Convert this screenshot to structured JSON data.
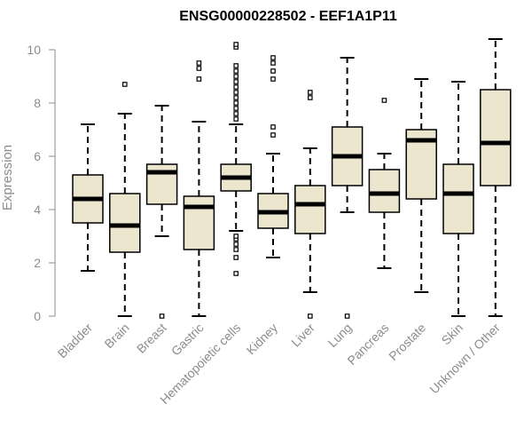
{
  "chart_data": {
    "type": "boxplot",
    "title": "ENSG00000228502 - EEF1A1P11",
    "xlabel": "",
    "ylabel": "Expression",
    "ylim": [
      0,
      10
    ],
    "yticks": [
      0,
      2,
      4,
      6,
      8,
      10
    ],
    "grid": false,
    "legend": "none",
    "colors": {
      "box_fill": "#ede6cf",
      "stroke": "#000000",
      "axis": "#8c8c8c"
    },
    "categories": [
      "Bladder",
      "Brain",
      "Breast",
      "Gastric",
      "Hematopoietic cells",
      "Kidney",
      "Liver",
      "Lung",
      "Pancreas",
      "Prostate",
      "Skin",
      "Unknown / Other"
    ],
    "boxes": [
      {
        "category": "Bladder",
        "whisker_low": 1.7,
        "q1": 3.5,
        "median": 4.4,
        "q3": 5.3,
        "whisker_high": 7.2,
        "outliers": []
      },
      {
        "category": "Brain",
        "whisker_low": 0.0,
        "q1": 2.4,
        "median": 3.4,
        "q3": 4.6,
        "whisker_high": 7.6,
        "outliers": [
          8.7
        ]
      },
      {
        "category": "Breast",
        "whisker_low": 3.0,
        "q1": 4.2,
        "median": 5.4,
        "q3": 5.7,
        "whisker_high": 7.9,
        "outliers": [
          0.0
        ]
      },
      {
        "category": "Gastric",
        "whisker_low": 0.0,
        "q1": 2.5,
        "median": 4.1,
        "q3": 4.5,
        "whisker_high": 7.3,
        "outliers": [
          8.9,
          9.3,
          9.5
        ]
      },
      {
        "category": "Hematopoietic cells",
        "whisker_low": 3.2,
        "q1": 4.7,
        "median": 5.2,
        "q3": 5.7,
        "whisker_high": 7.2,
        "outliers": [
          1.6,
          2.2,
          2.5,
          2.7,
          2.9,
          3.0,
          7.4,
          7.6,
          7.8,
          8.0,
          8.2,
          8.4,
          8.6,
          8.8,
          9.0,
          9.2,
          9.4,
          10.1,
          10.2
        ]
      },
      {
        "category": "Kidney",
        "whisker_low": 2.2,
        "q1": 3.3,
        "median": 3.9,
        "q3": 4.6,
        "whisker_high": 6.1,
        "outliers": [
          6.8,
          7.1,
          8.9,
          9.2,
          9.5,
          9.7
        ]
      },
      {
        "category": "Liver",
        "whisker_low": 0.9,
        "q1": 3.1,
        "median": 4.2,
        "q3": 4.9,
        "whisker_high": 6.3,
        "outliers": [
          0.0,
          8.2,
          8.4
        ]
      },
      {
        "category": "Lung",
        "whisker_low": 3.9,
        "q1": 4.9,
        "median": 6.0,
        "q3": 7.1,
        "whisker_high": 9.7,
        "outliers": [
          0.0
        ]
      },
      {
        "category": "Pancreas",
        "whisker_low": 1.8,
        "q1": 3.9,
        "median": 4.6,
        "q3": 5.5,
        "whisker_high": 6.1,
        "outliers": [
          8.1
        ]
      },
      {
        "category": "Prostate",
        "whisker_low": 0.9,
        "q1": 4.4,
        "median": 6.6,
        "q3": 7.0,
        "whisker_high": 8.9,
        "outliers": []
      },
      {
        "category": "Skin",
        "whisker_low": 0.0,
        "q1": 3.1,
        "median": 4.6,
        "q3": 5.7,
        "whisker_high": 8.8,
        "outliers": []
      },
      {
        "category": "Unknown / Other",
        "whisker_low": 0.0,
        "q1": 4.9,
        "median": 6.5,
        "q3": 8.5,
        "whisker_high": 10.4,
        "outliers": []
      }
    ]
  }
}
